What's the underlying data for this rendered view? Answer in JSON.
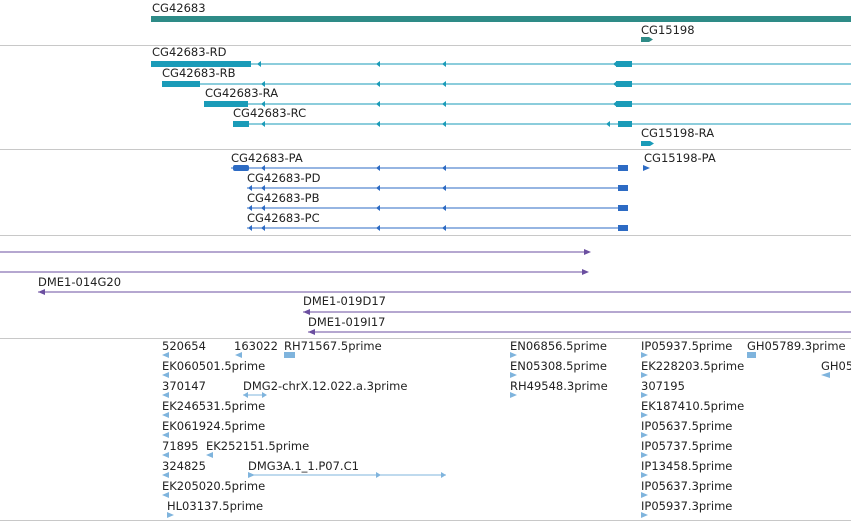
{
  "colors": {
    "gene": "#2e8b87",
    "transcript": "#1a9bb8",
    "protein": "#2d6bc4",
    "clone": "#6b4fa0",
    "est": "#7fb4dd",
    "separator": "#c8c8c8",
    "label": "#222222"
  },
  "tracks": {
    "genes": {
      "items": [
        {
          "label": "CG42683",
          "strand": "none"
        },
        {
          "label": "CG15198",
          "strand": "+"
        }
      ]
    },
    "transcripts": {
      "items": [
        {
          "label": "CG42683-RD",
          "strand": "-"
        },
        {
          "label": "CG42683-RB",
          "strand": "-"
        },
        {
          "label": "CG42683-RA",
          "strand": "-"
        },
        {
          "label": "CG42683-RC",
          "strand": "-"
        },
        {
          "label": "CG15198-RA",
          "strand": "+"
        }
      ]
    },
    "proteins": {
      "items": [
        {
          "label": "CG42683-PA",
          "strand": "-"
        },
        {
          "label": "CG15198-PA",
          "strand": "+"
        },
        {
          "label": "CG42683-PD",
          "strand": "-"
        },
        {
          "label": "CG42683-PB",
          "strand": "-"
        },
        {
          "label": "CG42683-PC",
          "strand": "-"
        }
      ]
    },
    "clones": {
      "items": [
        {
          "label": "",
          "strand": "+"
        },
        {
          "label": "",
          "strand": "+"
        },
        {
          "label": "DME1-014G20",
          "strand": "-"
        },
        {
          "label": "DME1-019D17",
          "strand": "-"
        },
        {
          "label": "DME1-019I17",
          "strand": "-"
        }
      ]
    },
    "ests": {
      "items": [
        {
          "label": "520654"
        },
        {
          "label": "163022"
        },
        {
          "label": "RH71567.5prime"
        },
        {
          "label": "EN06856.5prime"
        },
        {
          "label": "IP05937.5prime"
        },
        {
          "label": "GH05789.3prime"
        },
        {
          "label": "EK060501.5prime"
        },
        {
          "label": "EN05308.5prime"
        },
        {
          "label": "EK228203.5prime"
        },
        {
          "label": "GH05"
        },
        {
          "label": "370147"
        },
        {
          "label": "DMG2-chrX.12.022.a.3prime"
        },
        {
          "label": "RH49548.3prime"
        },
        {
          "label": "307195"
        },
        {
          "label": "EK246531.5prime"
        },
        {
          "label": "EK187410.5prime"
        },
        {
          "label": "EK061924.5prime"
        },
        {
          "label": "IP05637.5prime"
        },
        {
          "label": "71895"
        },
        {
          "label": "EK252151.5prime"
        },
        {
          "label": "IP05737.5prime"
        },
        {
          "label": "324825"
        },
        {
          "label": "DMG3A.1_1.P07.C1"
        },
        {
          "label": "IP13458.5prime"
        },
        {
          "label": "EK205020.5prime"
        },
        {
          "label": "IP05637.3prime"
        },
        {
          "label": "HL03137.5prime"
        },
        {
          "label": "IP05937.3prime"
        }
      ]
    }
  }
}
